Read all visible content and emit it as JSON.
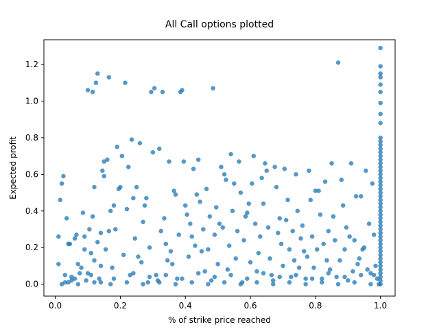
{
  "chart_data": {
    "type": "scatter",
    "title": "All Call options plotted",
    "xlabel": "% of strike price reached",
    "ylabel": "Expected profit",
    "xlim": [
      -0.035,
      1.045
    ],
    "ylim": [
      -0.065,
      1.335
    ],
    "xticks": [
      0.0,
      0.2,
      0.4,
      0.6,
      0.8,
      1.0
    ],
    "xtick_labels": [
      "0.0",
      "0.2",
      "0.4",
      "0.6",
      "0.8",
      "1.0"
    ],
    "yticks": [
      0.0,
      0.2,
      0.4,
      0.6,
      0.8,
      1.0,
      1.2
    ],
    "ytick_labels": [
      "0.0",
      "0.2",
      "0.4",
      "0.6",
      "0.8",
      "1.0",
      "1.2"
    ],
    "grid": false,
    "marker_color": "#1f77b4",
    "marker_alpha": 0.75,
    "points": [
      [
        0.01,
        0.11
      ],
      [
        0.01,
        0.26
      ],
      [
        0.015,
        0.46
      ],
      [
        0.02,
        0.55
      ],
      [
        0.025,
        0.59
      ],
      [
        0.03,
        0.05
      ],
      [
        0.035,
        0.36
      ],
      [
        0.04,
        0.22
      ],
      [
        0.045,
        0.22
      ],
      [
        0.05,
        0.02
      ],
      [
        0.02,
        0.0
      ],
      [
        0.04,
        0.01
      ],
      [
        0.06,
        0.03
      ],
      [
        0.06,
        0.25
      ],
      [
        0.065,
        0.27
      ],
      [
        0.07,
        0.11
      ],
      [
        0.075,
        0.06
      ],
      [
        0.08,
        0.09
      ],
      [
        0.085,
        0.39
      ],
      [
        0.09,
        0.19
      ],
      [
        0.09,
        0.26
      ],
      [
        0.095,
        0.02
      ],
      [
        0.1,
        1.06
      ],
      [
        0.1,
        0.06
      ],
      [
        0.105,
        0.3
      ],
      [
        0.11,
        0.17
      ],
      [
        0.115,
        1.05
      ],
      [
        0.115,
        0.37
      ],
      [
        0.12,
        0.53
      ],
      [
        0.12,
        0.13
      ],
      [
        0.125,
        1.1
      ],
      [
        0.13,
        1.15
      ],
      [
        0.13,
        0.23
      ],
      [
        0.135,
        0.03
      ],
      [
        0.14,
        0.28
      ],
      [
        0.14,
        0.01
      ],
      [
        0.145,
        0.62
      ],
      [
        0.15,
        0.67
      ],
      [
        0.15,
        0.59
      ],
      [
        0.155,
        0.19
      ],
      [
        0.16,
        0.68
      ],
      [
        0.165,
        1.13
      ],
      [
        0.165,
        0.29
      ],
      [
        0.17,
        0.4
      ],
      [
        0.175,
        0.09
      ],
      [
        0.18,
        0.43
      ],
      [
        0.185,
        0.3
      ],
      [
        0.19,
        0.75
      ],
      [
        0.195,
        0.52
      ],
      [
        0.2,
        0.53
      ],
      [
        0.205,
        0.7
      ],
      [
        0.21,
        0.16
      ],
      [
        0.215,
        1.1
      ],
      [
        0.22,
        0.41
      ],
      [
        0.225,
        0.64
      ],
      [
        0.23,
        0.05
      ],
      [
        0.235,
        0.79
      ],
      [
        0.24,
        0.47
      ],
      [
        0.245,
        0.25
      ],
      [
        0.25,
        0.53
      ],
      [
        0.255,
        0.15
      ],
      [
        0.26,
        0.77
      ],
      [
        0.265,
        0.12
      ],
      [
        0.27,
        0.34
      ],
      [
        0.275,
        0.43
      ],
      [
        0.28,
        0.47
      ],
      [
        0.285,
        0.01
      ],
      [
        0.29,
        0.2
      ],
      [
        0.295,
        1.05
      ],
      [
        0.3,
        0.72
      ],
      [
        0.305,
        1.07
      ],
      [
        0.31,
        0.05
      ],
      [
        0.315,
        0.02
      ],
      [
        0.32,
        0.74
      ],
      [
        0.325,
        0.29
      ],
      [
        0.33,
        1.05
      ],
      [
        0.335,
        0.36
      ],
      [
        0.34,
        0.22
      ],
      [
        0.345,
        0.13
      ],
      [
        0.35,
        0.67
      ],
      [
        0.355,
        0.18
      ],
      [
        0.36,
        0.11
      ],
      [
        0.365,
        0.51
      ],
      [
        0.37,
        0.49
      ],
      [
        0.375,
        0.03
      ],
      [
        0.38,
        0.27
      ],
      [
        0.385,
        1.05
      ],
      [
        0.39,
        1.06
      ],
      [
        0.395,
        0.67
      ],
      [
        0.4,
        0.43
      ],
      [
        0.405,
        0.38
      ],
      [
        0.41,
        0.15
      ],
      [
        0.415,
        0.33
      ],
      [
        0.42,
        0.26
      ],
      [
        0.425,
        0.63
      ],
      [
        0.43,
        0.21
      ],
      [
        0.435,
        0.49
      ],
      [
        0.44,
        0.68
      ],
      [
        0.445,
        0.45
      ],
      [
        0.45,
        0.18
      ],
      [
        0.455,
        0.3
      ],
      [
        0.46,
        0.07
      ],
      [
        0.465,
        0.52
      ],
      [
        0.47,
        0.19
      ],
      [
        0.475,
        0.37
      ],
      [
        0.48,
        0.02
      ],
      [
        0.485,
        1.07
      ],
      [
        0.49,
        0.27
      ],
      [
        0.495,
        0.42
      ],
      [
        0.5,
        0.11
      ],
      [
        0.505,
        0.33
      ],
      [
        0.51,
        0.64
      ],
      [
        0.515,
        0.31
      ],
      [
        0.52,
        0.6
      ],
      [
        0.525,
        0.57
      ],
      [
        0.53,
        0.08
      ],
      [
        0.535,
        0.21
      ],
      [
        0.54,
        0.71
      ],
      [
        0.545,
        0.4
      ],
      [
        0.55,
        0.55
      ],
      [
        0.555,
        0.14
      ],
      [
        0.56,
        0.29
      ],
      [
        0.565,
        0.67
      ],
      [
        0.57,
        0.5
      ],
      [
        0.575,
        0.01
      ],
      [
        0.58,
        0.24
      ],
      [
        0.585,
        0.37
      ],
      [
        0.59,
        0.39
      ],
      [
        0.595,
        0.44
      ],
      [
        0.6,
        0.12
      ],
      [
        0.605,
        0.55
      ],
      [
        0.61,
        0.7
      ],
      [
        0.615,
        0.33
      ],
      [
        0.62,
        0.07
      ],
      [
        0.625,
        0.17
      ],
      [
        0.63,
        0.26
      ],
      [
        0.635,
        0.58
      ],
      [
        0.64,
        0.44
      ],
      [
        0.645,
        0.66
      ],
      [
        0.65,
        0.62
      ],
      [
        0.655,
        0.31
      ],
      [
        0.66,
        0.14
      ],
      [
        0.665,
        0.05
      ],
      [
        0.67,
        0.02
      ],
      [
        0.675,
        0.64
      ],
      [
        0.68,
        0.53
      ],
      [
        0.685,
        0.28
      ],
      [
        0.69,
        0.36
      ],
      [
        0.695,
        0.22
      ],
      [
        0.7,
        0.1
      ],
      [
        0.705,
        0.63
      ],
      [
        0.71,
        0.35
      ],
      [
        0.715,
        0.46
      ],
      [
        0.72,
        0.19
      ],
      [
        0.725,
        0.04
      ],
      [
        0.73,
        0.29
      ],
      [
        0.735,
        0.13
      ],
      [
        0.74,
        0.6
      ],
      [
        0.745,
        0.4
      ],
      [
        0.75,
        0.09
      ],
      [
        0.755,
        0.25
      ],
      [
        0.76,
        0.32
      ],
      [
        0.765,
        0.18
      ],
      [
        0.77,
        0.03
      ],
      [
        0.775,
        0.15
      ],
      [
        0.78,
        0.62
      ],
      [
        0.785,
        0.46
      ],
      [
        0.79,
        0.26
      ],
      [
        0.795,
        0.09
      ],
      [
        0.8,
        0.51
      ],
      [
        0.805,
        0.19
      ],
      [
        0.81,
        0.51
      ],
      [
        0.815,
        0.38
      ],
      [
        0.82,
        0.03
      ],
      [
        0.825,
        0.22
      ],
      [
        0.83,
        0.56
      ],
      [
        0.835,
        0.13
      ],
      [
        0.84,
        0.29
      ],
      [
        0.845,
        0.08
      ],
      [
        0.85,
        0.66
      ],
      [
        0.855,
        0.37
      ],
      [
        0.86,
        0.24
      ],
      [
        0.865,
        0.04
      ],
      [
        0.87,
        1.21
      ],
      [
        0.875,
        0.13
      ],
      [
        0.88,
        0.57
      ],
      [
        0.885,
        0.43
      ],
      [
        0.89,
        0.19
      ],
      [
        0.895,
        0.31
      ],
      [
        0.9,
        0.02
      ],
      [
        0.905,
        0.26
      ],
      [
        0.91,
        0.66
      ],
      [
        0.915,
        0.07
      ],
      [
        0.92,
        0.24
      ],
      [
        0.925,
        0.48
      ],
      [
        0.93,
        0.11
      ],
      [
        0.935,
        0.14
      ],
      [
        0.94,
        0.48
      ],
      [
        0.945,
        0.19
      ],
      [
        0.95,
        0.2
      ],
      [
        0.955,
        0.62
      ],
      [
        0.96,
        0.08
      ],
      [
        0.965,
        0.33
      ],
      [
        0.97,
        0.06
      ],
      [
        0.975,
        0.55
      ],
      [
        0.98,
        0.27
      ],
      [
        0.985,
        0.1
      ],
      [
        0.99,
        0.03
      ],
      [
        0.995,
        0.0
      ],
      [
        1.0,
        0.0
      ],
      [
        1.0,
        0.02
      ],
      [
        1.0,
        0.04
      ],
      [
        1.0,
        0.06
      ],
      [
        1.0,
        0.08
      ],
      [
        1.0,
        0.1
      ],
      [
        1.0,
        0.12
      ],
      [
        1.0,
        0.14
      ],
      [
        1.0,
        0.16
      ],
      [
        1.0,
        0.18
      ],
      [
        1.0,
        0.2
      ],
      [
        1.0,
        0.22
      ],
      [
        1.0,
        0.24
      ],
      [
        1.0,
        0.26
      ],
      [
        1.0,
        0.28
      ],
      [
        1.0,
        0.3
      ],
      [
        1.0,
        0.32
      ],
      [
        1.0,
        0.34
      ],
      [
        1.0,
        0.36
      ],
      [
        1.0,
        0.38
      ],
      [
        1.0,
        0.4
      ],
      [
        1.0,
        0.42
      ],
      [
        1.0,
        0.44
      ],
      [
        1.0,
        0.46
      ],
      [
        1.0,
        0.48
      ],
      [
        1.0,
        0.5
      ],
      [
        1.0,
        0.52
      ],
      [
        1.0,
        0.54
      ],
      [
        1.0,
        0.56
      ],
      [
        1.0,
        0.58
      ],
      [
        1.0,
        0.6
      ],
      [
        1.0,
        0.62
      ],
      [
        1.0,
        0.64
      ],
      [
        1.0,
        0.66
      ],
      [
        1.0,
        0.68
      ],
      [
        1.0,
        0.7
      ],
      [
        1.0,
        0.72
      ],
      [
        1.0,
        0.74
      ],
      [
        1.0,
        0.76
      ],
      [
        1.0,
        0.78
      ],
      [
        1.0,
        0.8
      ],
      [
        1.0,
        0.88
      ],
      [
        1.0,
        0.93
      ],
      [
        1.0,
        0.99
      ],
      [
        1.0,
        1.05
      ],
      [
        1.0,
        1.09
      ],
      [
        1.0,
        1.13
      ],
      [
        1.0,
        1.15
      ],
      [
        1.0,
        1.19
      ],
      [
        1.0,
        1.29
      ],
      [
        0.03,
        0.01
      ],
      [
        0.07,
        0.0
      ],
      [
        0.12,
        0.01
      ],
      [
        0.17,
        0.0
      ],
      [
        0.22,
        0.01
      ],
      [
        0.27,
        0.0
      ],
      [
        0.32,
        0.01
      ],
      [
        0.37,
        0.0
      ],
      [
        0.42,
        0.01
      ],
      [
        0.47,
        0.0
      ],
      [
        0.52,
        0.01
      ],
      [
        0.57,
        0.0
      ],
      [
        0.62,
        0.01
      ],
      [
        0.67,
        0.0
      ],
      [
        0.72,
        0.01
      ],
      [
        0.77,
        0.0
      ],
      [
        0.82,
        0.01
      ],
      [
        0.87,
        0.0
      ],
      [
        0.92,
        0.01
      ],
      [
        0.97,
        0.0
      ],
      [
        0.05,
        0.04
      ],
      [
        0.11,
        0.05
      ],
      [
        0.18,
        0.03
      ],
      [
        0.24,
        0.06
      ],
      [
        0.29,
        0.04
      ],
      [
        0.34,
        0.05
      ],
      [
        0.39,
        0.03
      ],
      [
        0.44,
        0.06
      ],
      [
        0.49,
        0.04
      ],
      [
        0.54,
        0.05
      ],
      [
        0.59,
        0.03
      ],
      [
        0.64,
        0.06
      ],
      [
        0.69,
        0.04
      ],
      [
        0.74,
        0.05
      ],
      [
        0.79,
        0.03
      ],
      [
        0.84,
        0.06
      ],
      [
        0.89,
        0.04
      ],
      [
        0.94,
        0.05
      ],
      [
        0.98,
        0.05
      ],
      [
        0.14,
        0.1
      ]
    ]
  }
}
